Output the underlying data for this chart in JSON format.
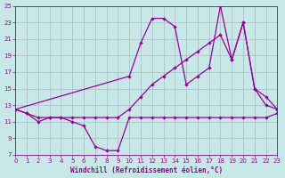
{
  "xlabel": "Windchill (Refroidissement éolien,°C)",
  "bg_color": "#c8e8e8",
  "line_color": "#990099",
  "grid_color": "#aabbc8",
  "xlim": [
    0,
    23
  ],
  "ylim": [
    7,
    25
  ],
  "xticks": [
    0,
    1,
    2,
    3,
    4,
    5,
    6,
    7,
    8,
    9,
    10,
    11,
    12,
    13,
    14,
    15,
    16,
    17,
    18,
    19,
    20,
    21,
    22,
    23
  ],
  "yticks": [
    7,
    9,
    11,
    13,
    15,
    17,
    19,
    21,
    23,
    25
  ],
  "curve_upper_x": [
    0,
    10,
    11,
    12,
    13,
    14,
    15,
    16,
    17,
    18,
    19,
    20,
    21,
    22,
    23
  ],
  "curve_upper_y": [
    12.5,
    16.5,
    20.5,
    23.5,
    23.5,
    22.5,
    15.5,
    16.5,
    17.5,
    25.0,
    18.5,
    23.0,
    15.0,
    13.0,
    12.5
  ],
  "curve_mid_x": [
    0,
    1,
    2,
    3,
    4,
    5,
    6,
    7,
    8,
    9,
    10,
    11,
    12,
    13,
    14,
    15,
    16,
    17,
    18,
    19,
    20,
    21,
    22,
    23
  ],
  "curve_mid_y": [
    12.5,
    12.0,
    11.5,
    11.5,
    11.5,
    11.5,
    11.5,
    11.5,
    11.5,
    11.5,
    12.5,
    14.0,
    15.5,
    16.5,
    17.5,
    18.5,
    19.5,
    20.5,
    21.5,
    18.5,
    23.0,
    15.0,
    14.0,
    12.5
  ],
  "curve_low_x": [
    0,
    1,
    2,
    3,
    4,
    5,
    6,
    7,
    8,
    9,
    10,
    11,
    12,
    13,
    14,
    15,
    16,
    17,
    18,
    19,
    20,
    21,
    22,
    23
  ],
  "curve_low_y": [
    12.5,
    12.0,
    11.0,
    11.5,
    11.5,
    11.0,
    10.5,
    8.0,
    7.5,
    7.5,
    11.5,
    11.5,
    11.5,
    11.5,
    11.5,
    11.5,
    11.5,
    11.5,
    11.5,
    11.5,
    11.5,
    11.5,
    11.5,
    12.0
  ]
}
